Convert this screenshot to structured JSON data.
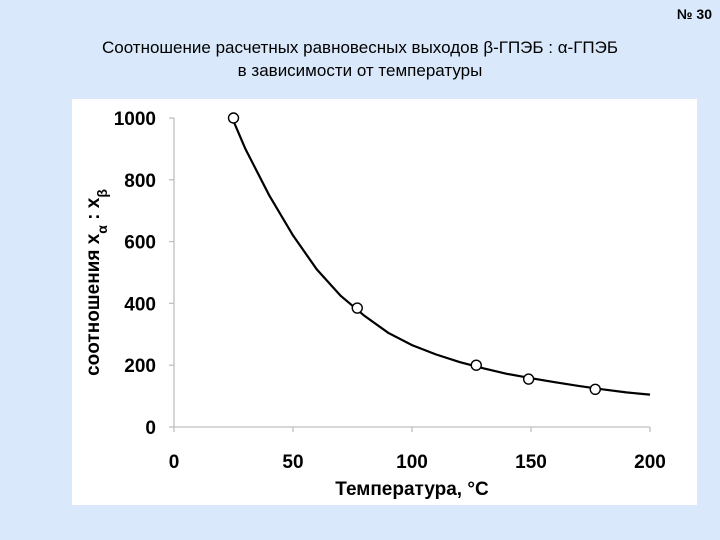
{
  "slide_number": "№ 30",
  "title_line1": "Соотношение расчетных равновесных выходов β-ГПЭБ : α-ГПЭБ",
  "title_line2": "в зависимости от температуры",
  "chart_data": {
    "type": "scatter",
    "title": "",
    "xlabel": "Температура, °C",
    "ylabel_text": "соотношения x",
    "ylabel_sub1": "α",
    "ylabel_colon": " : x",
    "ylabel_sub2": "β",
    "xlim": [
      0,
      200
    ],
    "ylim": [
      0,
      1000
    ],
    "x_ticks": [
      0,
      50,
      100,
      150,
      200
    ],
    "y_ticks": [
      0,
      200,
      400,
      600,
      800,
      1000
    ],
    "grid": false,
    "legend": "none",
    "series": [
      {
        "kind": "points",
        "x": [
          25,
          77,
          127,
          149,
          177
        ],
        "y": [
          1000,
          385,
          200,
          155,
          122
        ]
      },
      {
        "kind": "fit-curve",
        "x": [
          25,
          30,
          40,
          50,
          60,
          70,
          80,
          90,
          100,
          110,
          120,
          130,
          140,
          150,
          160,
          170,
          180,
          190,
          200
        ],
        "y": [
          990,
          900,
          750,
          620,
          510,
          425,
          360,
          305,
          265,
          235,
          210,
          190,
          172,
          158,
          145,
          133,
          122,
          112,
          105
        ]
      }
    ],
    "colors": {
      "line": "#000000",
      "axis": "#bfbfbf",
      "marker_fill": "#ffffff"
    }
  }
}
